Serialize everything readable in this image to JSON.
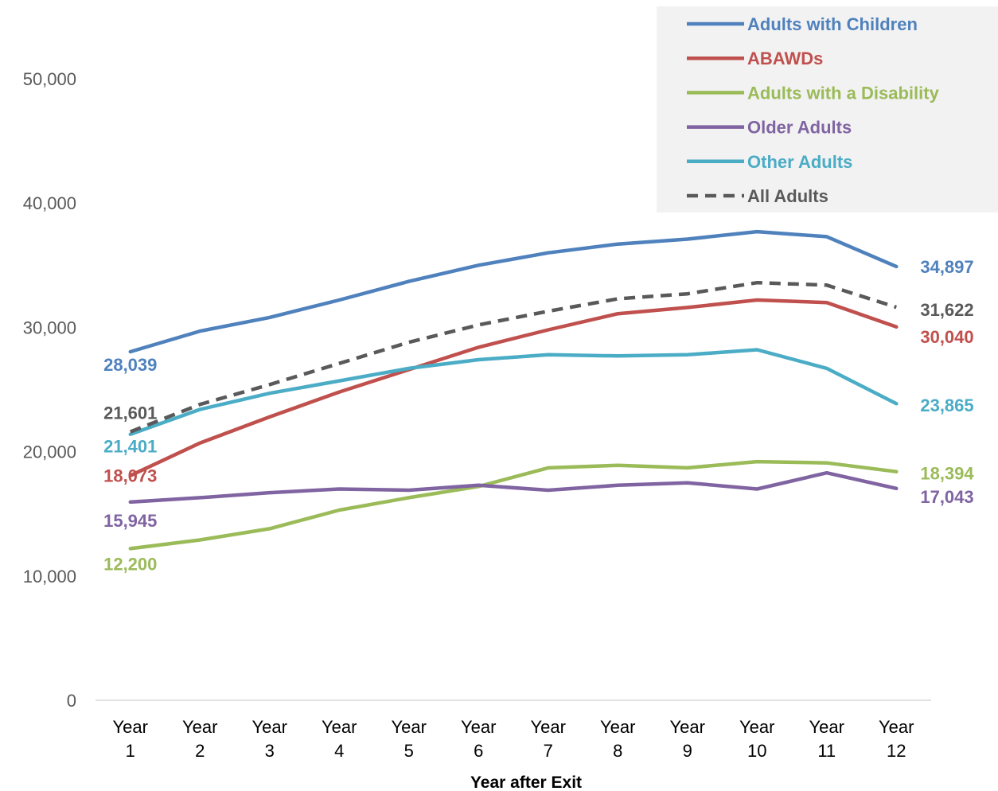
{
  "chart_data": {
    "type": "line",
    "categories": [
      "Year 1",
      "Year 2",
      "Year 3",
      "Year 4",
      "Year 5",
      "Year 6",
      "Year 7",
      "Year 8",
      "Year 9",
      "Year 10",
      "Year 11",
      "Year 12"
    ],
    "xlabel": "Year after Exit",
    "ylabel": "",
    "ylim": [
      0,
      50000
    ],
    "yticks": [
      0,
      10000,
      20000,
      30000,
      40000,
      50000
    ],
    "ytick_labels": [
      "0",
      "10,000",
      "20,000",
      "30,000",
      "40,000",
      "50,000"
    ],
    "grid": false,
    "legend_position": "top-right",
    "series": [
      {
        "name": "Adults with Children",
        "color": "#4F81BD",
        "dashed": false,
        "values": [
          28039,
          29700,
          30800,
          32200,
          33700,
          35000,
          36000,
          36700,
          37100,
          37700,
          37300,
          34897
        ],
        "start_label": "28,039",
        "end_label": "34,897"
      },
      {
        "name": "ABAWDs",
        "color": "#C0504D",
        "dashed": false,
        "values": [
          18073,
          20700,
          22800,
          24800,
          26600,
          28400,
          29800,
          31100,
          31600,
          32200,
          32000,
          30040
        ],
        "start_label": "18,073",
        "end_label": "30,040"
      },
      {
        "name": "Adults with a Disability",
        "color": "#9BBB59",
        "dashed": false,
        "values": [
          12200,
          12900,
          13800,
          15300,
          16300,
          17200,
          18700,
          18900,
          18700,
          19200,
          19100,
          18394
        ],
        "start_label": "12,200",
        "end_label": "18,394"
      },
      {
        "name": "Older Adults",
        "color": "#8064A2",
        "dashed": false,
        "values": [
          15945,
          16300,
          16700,
          17000,
          16900,
          17300,
          16900,
          17300,
          17500,
          17000,
          18300,
          17043
        ],
        "start_label": "15,945",
        "end_label": "17,043"
      },
      {
        "name": "Other Adults",
        "color": "#4BACC6",
        "dashed": false,
        "values": [
          21401,
          23400,
          24700,
          25700,
          26700,
          27400,
          27800,
          27700,
          27800,
          28200,
          26700,
          23865
        ],
        "start_label": "21,401",
        "end_label": "23,865"
      },
      {
        "name": "All Adults",
        "color": "#595959",
        "dashed": true,
        "values": [
          21601,
          23800,
          25400,
          27100,
          28800,
          30200,
          31300,
          32300,
          32700,
          33600,
          33400,
          31622
        ],
        "start_label": "21,601",
        "end_label": "31,622"
      }
    ]
  }
}
